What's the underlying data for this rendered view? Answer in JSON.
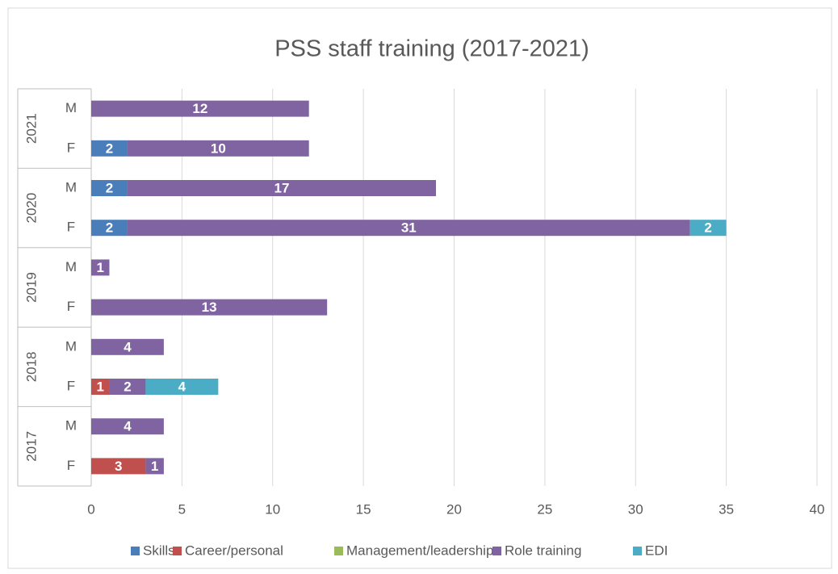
{
  "chart_data": {
    "type": "stacked-bar-horizontal",
    "title": "PSS staff training (2017-2021)",
    "groups": [
      "2021",
      "2020",
      "2019",
      "2018",
      "2017"
    ],
    "categories": [
      "M",
      "F",
      "M",
      "F",
      "M",
      "F",
      "M",
      "F",
      "M",
      "F"
    ],
    "series": [
      {
        "name": "Skills",
        "color": "#4a7ebb",
        "values": [
          null,
          2,
          2,
          2,
          null,
          null,
          null,
          null,
          null,
          null
        ]
      },
      {
        "name": "Career/personal",
        "color": "#c0504d",
        "values": [
          null,
          null,
          null,
          null,
          null,
          null,
          null,
          1,
          null,
          3
        ]
      },
      {
        "name": "Management/leadership",
        "color": "#9bbb59",
        "values": [
          null,
          null,
          null,
          null,
          null,
          null,
          null,
          null,
          null,
          null
        ]
      },
      {
        "name": "Role training",
        "color": "#8064a2",
        "values": [
          12,
          10,
          17,
          31,
          1,
          13,
          4,
          2,
          4,
          1
        ]
      },
      {
        "name": "EDI",
        "color": "#4bacc6",
        "values": [
          null,
          null,
          null,
          2,
          null,
          null,
          null,
          4,
          null,
          null
        ]
      }
    ],
    "xlim": [
      0,
      40
    ],
    "xticks": [
      0,
      5,
      10,
      15,
      20,
      25,
      30,
      35,
      40
    ],
    "grid": true,
    "legend": "bottom"
  }
}
